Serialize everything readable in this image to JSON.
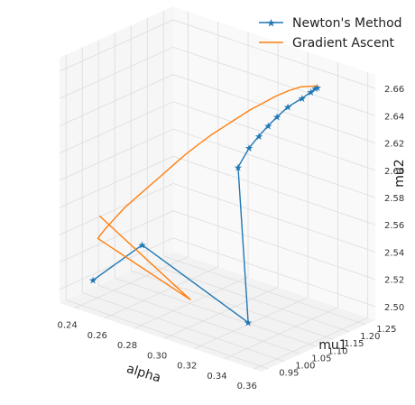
{
  "chart_data": {
    "type": "line",
    "projection": "3d",
    "title": "",
    "axes": {
      "x": {
        "label": "alpha",
        "ticks": [
          0.24,
          0.26,
          0.28,
          0.3,
          0.32,
          0.34,
          0.36
        ],
        "tick_labels": [
          "0.24",
          "0.26",
          "0.28",
          "0.30",
          "0.32",
          "0.34",
          "0.36"
        ],
        "range": [
          0.23,
          0.365
        ]
      },
      "y": {
        "label": "mu1",
        "ticks": [
          0.95,
          1.0,
          1.05,
          1.1,
          1.15,
          1.2,
          1.25
        ],
        "tick_labels": [
          "0.95",
          "1.00",
          "1.05",
          "1.10",
          "1.15",
          "1.20",
          "1.25"
        ],
        "range": [
          0.93,
          1.28
        ]
      },
      "z": {
        "label": "mu2",
        "ticks": [
          2.5,
          2.52,
          2.54,
          2.56,
          2.58,
          2.6,
          2.62,
          2.64,
          2.66
        ],
        "tick_labels": [
          "2.50",
          "2.52",
          "2.54",
          "2.56",
          "2.58",
          "2.60",
          "2.62",
          "2.64",
          "2.66"
        ],
        "range": [
          2.49,
          2.67
        ]
      }
    },
    "grid": true,
    "legend": {
      "position": "top-right"
    },
    "series": [
      {
        "name": "Newton's Method",
        "color": "#1f77b4",
        "marker": "star",
        "alpha": [
          0.235,
          0.27,
          0.33,
          0.31,
          0.313,
          0.317,
          0.321,
          0.325,
          0.33,
          0.336,
          0.34,
          0.342,
          0.343
        ],
        "mu1": [
          1.01,
          1.0,
          1.05,
          1.111,
          1.131,
          1.143,
          1.153,
          1.162,
          1.172,
          1.188,
          1.197,
          1.201,
          1.203
        ],
        "mu2": [
          2.5,
          2.54,
          2.5,
          2.6,
          2.613,
          2.622,
          2.63,
          2.637,
          2.645,
          2.652,
          2.657,
          2.66,
          2.661
        ]
      },
      {
        "name": "Gradient Ascent",
        "color": "#ff7f0e",
        "marker": "none",
        "alpha": [
          0.235,
          0.3,
          0.236,
          0.24,
          0.245,
          0.25,
          0.256,
          0.262,
          0.268,
          0.274,
          0.28,
          0.286,
          0.292,
          0.298,
          0.304,
          0.31,
          0.316,
          0.322,
          0.328,
          0.334,
          0.34,
          0.343
        ],
        "mu1": [
          1.03,
          1.01,
          1.02,
          1.025,
          1.032,
          1.04,
          1.05,
          1.06,
          1.07,
          1.08,
          1.09,
          1.1,
          1.112,
          1.124,
          1.136,
          1.148,
          1.16,
          1.172,
          1.184,
          1.194,
          1.2,
          1.203
        ],
        "mu2": [
          2.545,
          2.51,
          2.53,
          2.538,
          2.547,
          2.556,
          2.565,
          2.574,
          2.583,
          2.592,
          2.601,
          2.609,
          2.617,
          2.624,
          2.631,
          2.638,
          2.644,
          2.65,
          2.655,
          2.659,
          2.661,
          2.662
        ]
      }
    ]
  }
}
